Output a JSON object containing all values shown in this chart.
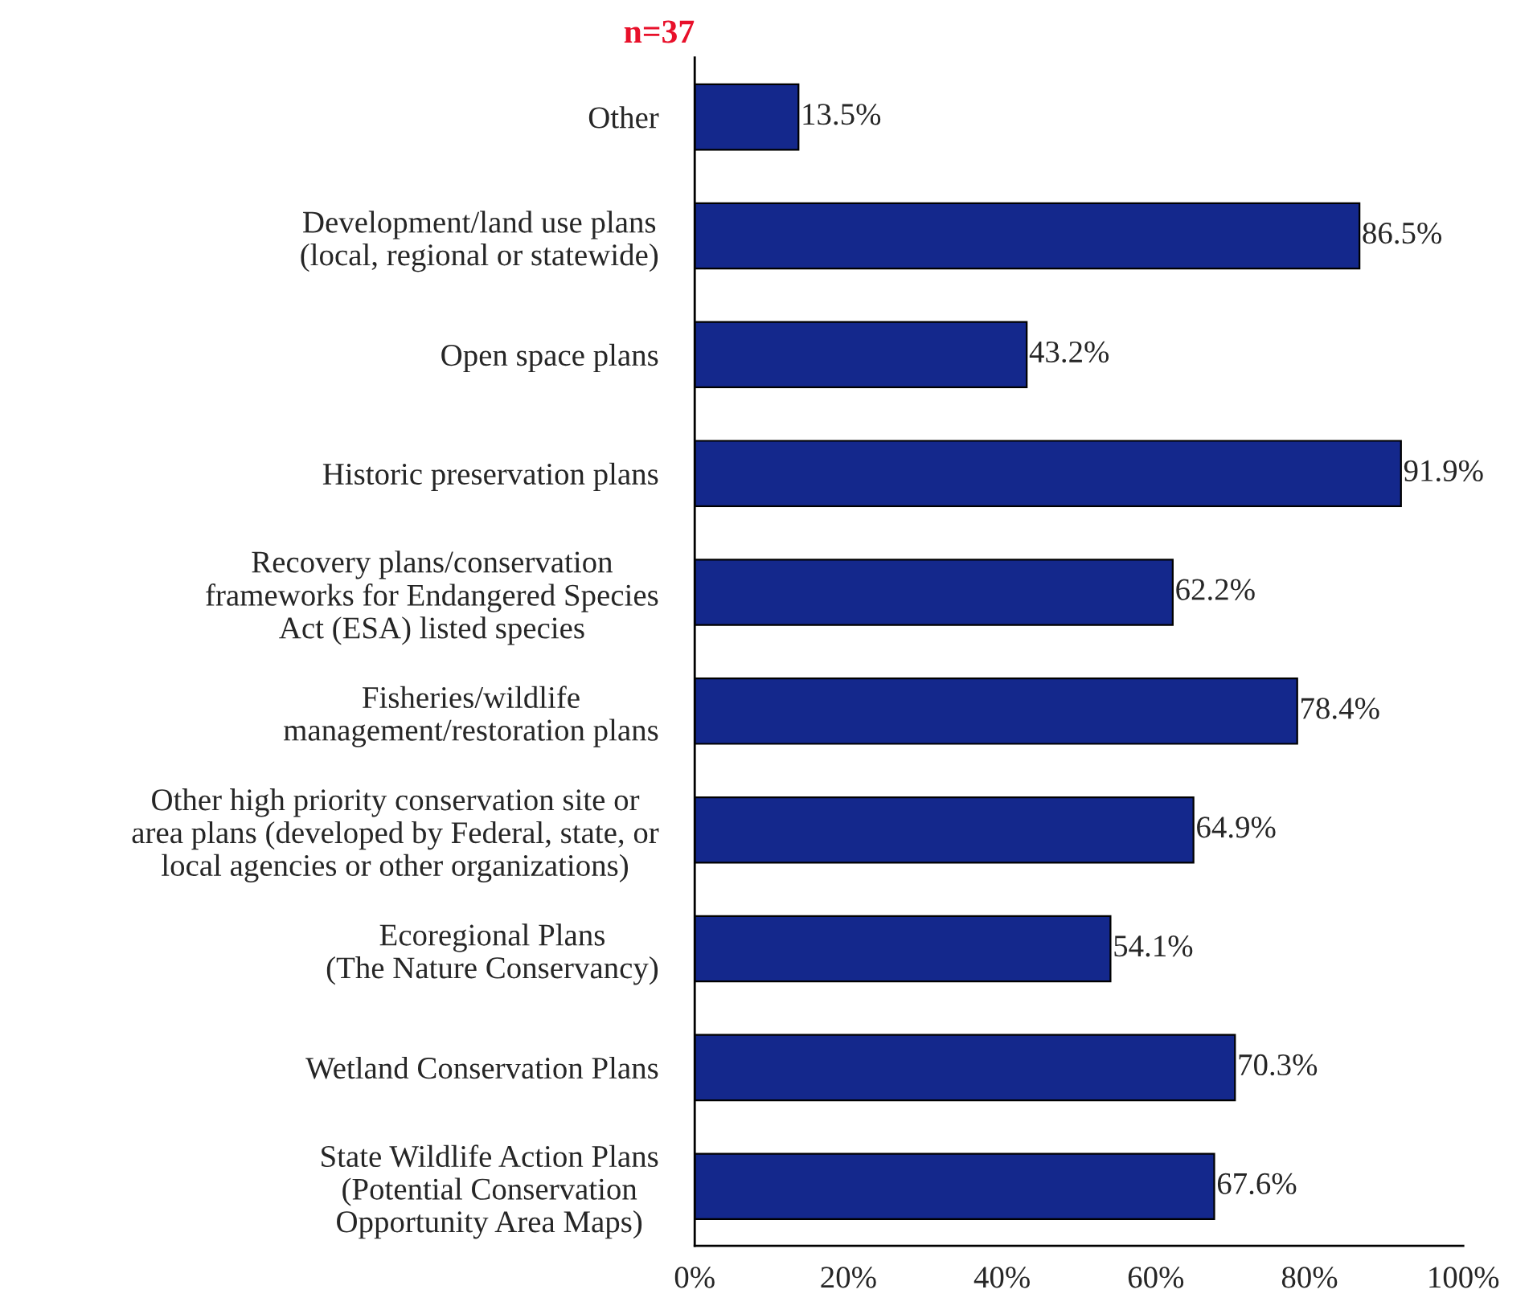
{
  "chart_data": {
    "type": "bar",
    "orientation": "horizontal",
    "title": "n=37",
    "categories": [
      "Other",
      "Development/land use plans\n(local, regional or statewide)",
      "Open space plans",
      "Historic preservation plans",
      "Recovery plans/conservation\nframeworks for Endangered Species\nAct (ESA) listed species",
      "Fisheries/wildlife\nmanagement/restoration plans",
      "Other high priority conservation site or\narea plans (developed by Federal, state, or\nlocal agencies or other organizations)",
      "Ecoregional Plans\n(The Nature Conservancy)",
      "Wetland Conservation Plans",
      "State Wildlife Action Plans\n(Potential Conservation\nOpportunity Area Maps)"
    ],
    "values": [
      13.5,
      86.5,
      43.2,
      91.9,
      62.2,
      78.4,
      64.9,
      54.1,
      70.3,
      67.6
    ],
    "value_labels": [
      "13.5%",
      "86.5%",
      "43.2%",
      "91.9%",
      "62.2%",
      "78.4%",
      "64.9%",
      "54.1%",
      "70.3%",
      "67.6%"
    ],
    "color": "#14288c",
    "xlim": [
      0,
      100
    ],
    "xticks": [
      {
        "value": 0,
        "label": "0%"
      },
      {
        "value": 20,
        "label": "20%"
      },
      {
        "value": 40,
        "label": "40%"
      },
      {
        "value": 60,
        "label": "60%"
      },
      {
        "value": 80,
        "label": "80%"
      },
      {
        "value": 100,
        "label": "100%"
      }
    ],
    "grid": false,
    "legend": false
  }
}
